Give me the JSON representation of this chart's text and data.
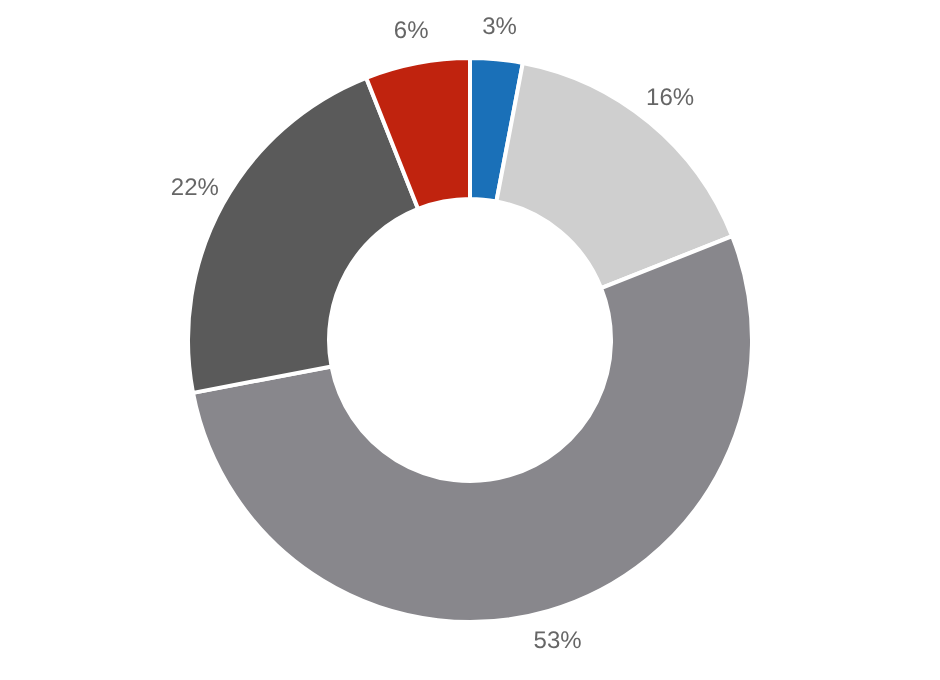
{
  "chart_data": {
    "type": "donut",
    "categories": [
      null,
      null,
      null,
      null,
      null
    ],
    "values": [
      3,
      16,
      53,
      22,
      6
    ],
    "value_labels": [
      "3%",
      "16%",
      "53%",
      "22%",
      "6%"
    ],
    "colors": [
      "#1a70b8",
      "#cfcfcf",
      "#88878c",
      "#5a5a5a",
      "#c0230e"
    ],
    "legend": false
  }
}
